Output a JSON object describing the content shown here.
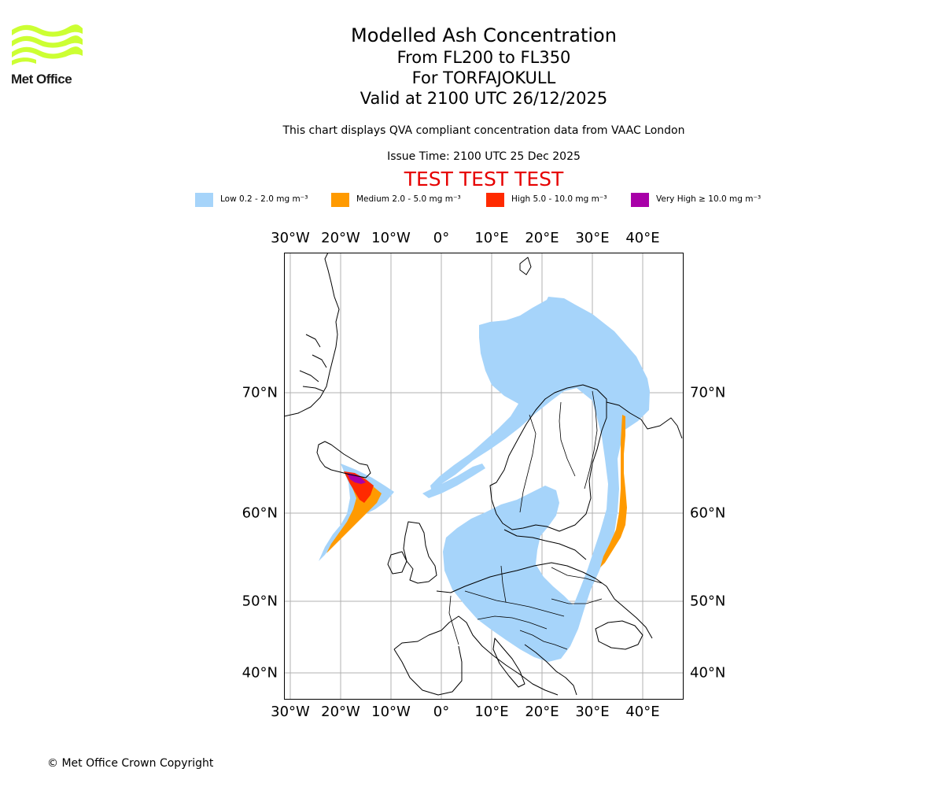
{
  "logo": {
    "text": "Met Office",
    "wave_color": "#ccff33"
  },
  "titles": {
    "main": "Modelled Ash Concentration",
    "levels": "From FL200 to FL350",
    "volcano": "For TORFAJOKULL",
    "valid": "Valid at 2100 UTC 26/12/2025"
  },
  "compliance_note": "This chart displays QVA compliant concentration data from VAAC London",
  "issue_time": "Issue Time: 2100 UTC 25 Dec 2025",
  "test_banner": "TEST TEST TEST",
  "legend": [
    {
      "label": "Low 0.2 - 2.0 mg m⁻³",
      "color": "#a6d4fa"
    },
    {
      "label": "Medium 2.0 - 5.0 mg m⁻³",
      "color": "#ff9a00"
    },
    {
      "label": "High 5.0 - 10.0 mg m⁻³",
      "color": "#ff2a00"
    },
    {
      "label": "Very High  ≥  10.0 mg m⁻³",
      "color": "#a800a8"
    }
  ],
  "map": {
    "lon_ticks": [
      "30°W",
      "20°W",
      "10°W",
      "0°",
      "10°E",
      "20°E",
      "30°E",
      "40°E"
    ],
    "lat_ticks": [
      "70°N",
      "60°N",
      "50°N",
      "40°N"
    ]
  },
  "copyright": "© Met Office Crown Copyright"
}
